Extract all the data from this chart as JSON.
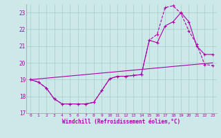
{
  "xlabel": "Windchill (Refroidissement éolien,°C)",
  "background_color": "#cce8e8",
  "grid_color": "#aacccc",
  "line_color": "#aa00aa",
  "xlim": [
    -0.5,
    23.5
  ],
  "ylim": [
    17,
    23.5
  ],
  "yticks": [
    17,
    18,
    19,
    20,
    21,
    22,
    23
  ],
  "xticks": [
    0,
    1,
    2,
    3,
    4,
    5,
    6,
    7,
    8,
    9,
    10,
    11,
    12,
    13,
    14,
    15,
    16,
    17,
    18,
    19,
    20,
    21,
    22,
    23
  ],
  "curve1_x": [
    0,
    1,
    2,
    3,
    4,
    5,
    6,
    7,
    8,
    9,
    10,
    11,
    12,
    13,
    14,
    15,
    16,
    17,
    18,
    19,
    20,
    21,
    22,
    23
  ],
  "curve1_y": [
    19.0,
    18.85,
    18.5,
    17.85,
    17.55,
    17.55,
    17.55,
    17.55,
    17.65,
    18.35,
    19.05,
    19.2,
    19.2,
    19.25,
    19.3,
    21.35,
    21.2,
    22.2,
    22.45,
    23.0,
    22.45,
    21.0,
    20.5,
    20.5
  ],
  "curve2_x": [
    0,
    1,
    2,
    3,
    4,
    5,
    6,
    7,
    8,
    9,
    10,
    11,
    12,
    13,
    14,
    15,
    16,
    17,
    18,
    19,
    20,
    21,
    22,
    23
  ],
  "curve2_y": [
    19.0,
    18.85,
    18.5,
    17.85,
    17.55,
    17.55,
    17.55,
    17.55,
    17.65,
    18.35,
    19.05,
    19.2,
    19.2,
    19.25,
    19.3,
    21.35,
    21.7,
    23.3,
    23.4,
    22.95,
    21.9,
    21.1,
    19.9,
    19.85
  ],
  "curve3_x": [
    0,
    23
  ],
  "curve3_y": [
    19.0,
    20.0
  ]
}
